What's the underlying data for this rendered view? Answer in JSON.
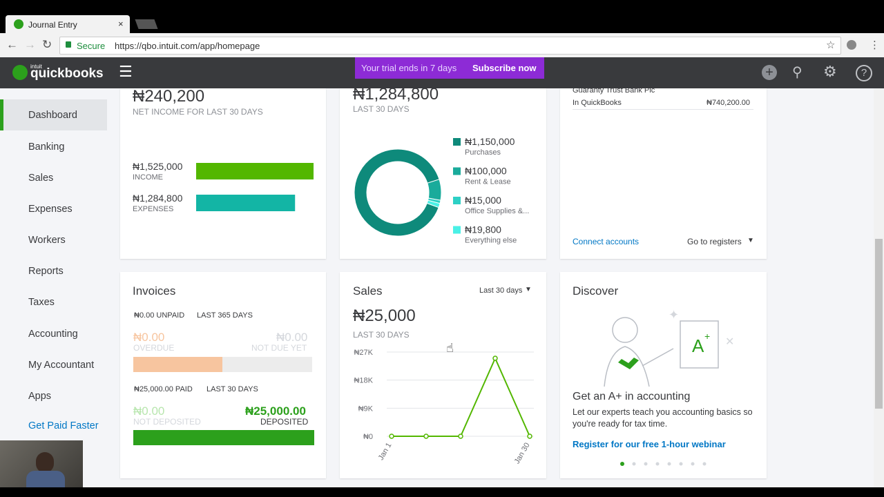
{
  "browser": {
    "tab_title": "Journal Entry",
    "secure": "Secure",
    "url": "https://qbo.intuit.com/app/homepage"
  },
  "topbar": {
    "logo_small": "intuit",
    "logo": "quickbooks",
    "trial": "Your trial ends in 7 days",
    "subscribe": "Subscribe now"
  },
  "sidebar": {
    "items": [
      "Dashboard",
      "Banking",
      "Sales",
      "Expenses",
      "Workers",
      "Reports",
      "Taxes",
      "Accounting",
      "My Accountant",
      "Apps",
      "Get Paid Faster"
    ]
  },
  "profit_loss": {
    "net_income": "₦240,200",
    "net_label": "NET INCOME FOR LAST 30 DAYS",
    "bars": {
      "type": "bar",
      "categories": [
        "INCOME",
        "EXPENSES"
      ],
      "values": [
        1525000,
        1284800
      ],
      "value_labels": [
        "₦1,525,000",
        "₦1,284,800"
      ],
      "colors": [
        "#53b700",
        "#13b5a5"
      ]
    }
  },
  "expenses": {
    "total": "₦1,284,800",
    "period": "LAST 30 DAYS",
    "donut": {
      "type": "pie",
      "categories": [
        "Purchases",
        "Rent & Lease",
        "Office Supplies &...",
        "Everything else"
      ],
      "values": [
        1150000,
        100000,
        15000,
        19800
      ],
      "value_labels": [
        "₦1,150,000",
        "₦100,000",
        "₦15,000",
        "₦19,800"
      ],
      "colors": [
        "#0e8a7b",
        "#1aab9b",
        "#2dd0c5",
        "#4af0e6"
      ]
    }
  },
  "bank": {
    "bank_name": "Guaranty Trust Bank Plc",
    "in_qb_label": "In QuickBooks",
    "in_qb_value": "₦740,200.00",
    "connect": "Connect accounts",
    "registers": "Go to registers"
  },
  "invoices": {
    "title": "Invoices",
    "unpaid": "₦0.00 UNPAID",
    "unpaid_period": "LAST 365 DAYS",
    "overdue_amount": "₦0.00",
    "overdue_label": "OVERDUE",
    "not_due_amount": "₦0.00",
    "not_due_label": "NOT DUE YET",
    "paid": "₦25,000.00 PAID",
    "paid_period": "LAST 30 DAYS",
    "not_deposited_amount": "₦0.00",
    "not_deposited_label": "NOT DEPOSITED",
    "deposited_amount": "₦25,000.00",
    "deposited_label": "DEPOSITED"
  },
  "sales": {
    "title": "Sales",
    "period_select": "Last 30 days",
    "total": "₦25,000",
    "period": "LAST 30 DAYS",
    "chart": {
      "type": "line",
      "x": [
        "Jan 1",
        null,
        null,
        null,
        "Jan 30"
      ],
      "values": [
        0,
        0,
        0,
        25000,
        0
      ],
      "ylim": [
        0,
        27000
      ],
      "yticks": [
        {
          "value": 0,
          "label": "₦0"
        },
        {
          "value": 9000,
          "label": "₦9K"
        },
        {
          "value": 18000,
          "label": "₦18K"
        },
        {
          "value": 27000,
          "label": "₦27K"
        }
      ],
      "color": "#53b700",
      "grid": true
    }
  },
  "discover": {
    "title": "Discover",
    "headline": "Get an A+ in accounting",
    "body": "Let our experts teach you accounting basics so you're ready for tax time.",
    "link": "Register for our free 1-hour webinar"
  }
}
